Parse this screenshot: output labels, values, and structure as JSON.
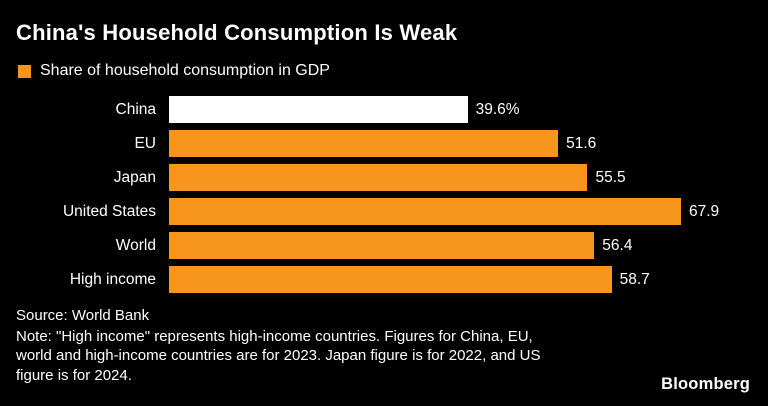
{
  "header": {
    "title": "China's Household Consumption Is Weak"
  },
  "legend": {
    "label": "Share of household consumption in GDP"
  },
  "chart_data": {
    "type": "bar",
    "orientation": "horizontal",
    "title": "China's Household Consumption Is Weak",
    "legend_label": "Share of household consumption in GDP",
    "categories": [
      "China",
      "EU",
      "Japan",
      "United States",
      "World",
      "High income"
    ],
    "values": [
      39.6,
      51.6,
      55.5,
      67.9,
      56.4,
      58.7
    ],
    "value_labels": [
      "39.6%",
      "51.6",
      "55.5",
      "67.9",
      "56.4",
      "58.7"
    ],
    "bar_colors": [
      "#ffffff",
      "#f7951d",
      "#f7951d",
      "#f7951d",
      "#f7951d",
      "#f7951d"
    ],
    "xmax": 67.9,
    "xlabel": "",
    "ylabel": "",
    "grid": false,
    "legend_position": "top-left"
  },
  "footer": {
    "source": "Source: World Bank",
    "note": "Note: \"High income\" represents high-income countries. Figures for China, EU,\nworld and high-income countries are for 2023. Japan figure is for 2022, and US\nfigure is for 2024.",
    "brand": "Bloomberg"
  },
  "colors": {
    "accent": "#f7951d",
    "background": "#000000",
    "china_bar": "#ffffff",
    "text": "#ffffff"
  }
}
